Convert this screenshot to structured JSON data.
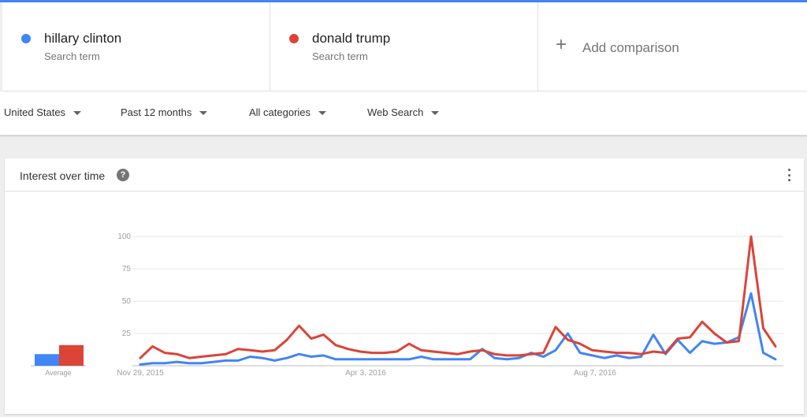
{
  "terms": [
    {
      "name": "hillary clinton",
      "sub": "Search term",
      "color": "#4285f4"
    },
    {
      "name": "donald trump",
      "sub": "Search term",
      "color": "#db4437"
    }
  ],
  "add_comparison": {
    "label": "Add comparison",
    "icon": "plus-icon"
  },
  "filters": {
    "region": "United States",
    "time": "Past 12 months",
    "category": "All categories",
    "property": "Web Search"
  },
  "card": {
    "title": "Interest over time",
    "help_icon": "help-icon",
    "menu_icon": "more-vert-icon"
  },
  "chart_data": [
    {
      "type": "bar",
      "title": "",
      "categories": [
        "Average"
      ],
      "series": [
        {
          "name": "hillary clinton",
          "values": [
            9
          ],
          "color": "#4285f4"
        },
        {
          "name": "donald trump",
          "values": [
            16
          ],
          "color": "#db4437"
        }
      ],
      "ylim": [
        0,
        100
      ]
    },
    {
      "type": "line",
      "title": "",
      "x_tick_labels": [
        "Nov 29, 2015",
        "Apr 3, 2016",
        "Aug 7, 2016"
      ],
      "y_ticks": [
        25,
        50,
        75,
        100
      ],
      "ylim": [
        0,
        100
      ],
      "grid": true,
      "series": [
        {
          "name": "hillary clinton",
          "color": "#4285f4",
          "values": [
            1,
            2,
            2,
            3,
            2,
            2,
            3,
            4,
            4,
            7,
            6,
            4,
            6,
            9,
            7,
            8,
            5,
            5,
            5,
            5,
            5,
            5,
            5,
            7,
            5,
            5,
            5,
            5,
            13,
            6,
            5,
            6,
            10,
            7,
            12,
            25,
            10,
            8,
            6,
            8,
            6,
            7,
            24,
            9,
            20,
            10,
            19,
            17,
            18,
            22,
            56,
            10,
            5
          ]
        },
        {
          "name": "donald trump",
          "color": "#db4437",
          "values": [
            6,
            15,
            10,
            9,
            6,
            7,
            8,
            9,
            13,
            12,
            11,
            12,
            20,
            31,
            21,
            24,
            16,
            13,
            11,
            10,
            10,
            11,
            17,
            12,
            11,
            10,
            9,
            11,
            12,
            9,
            8,
            8,
            9,
            10,
            30,
            20,
            17,
            12,
            11,
            10,
            10,
            9,
            11,
            10,
            21,
            22,
            34,
            25,
            18,
            19,
            100,
            29,
            15
          ]
        }
      ]
    }
  ]
}
